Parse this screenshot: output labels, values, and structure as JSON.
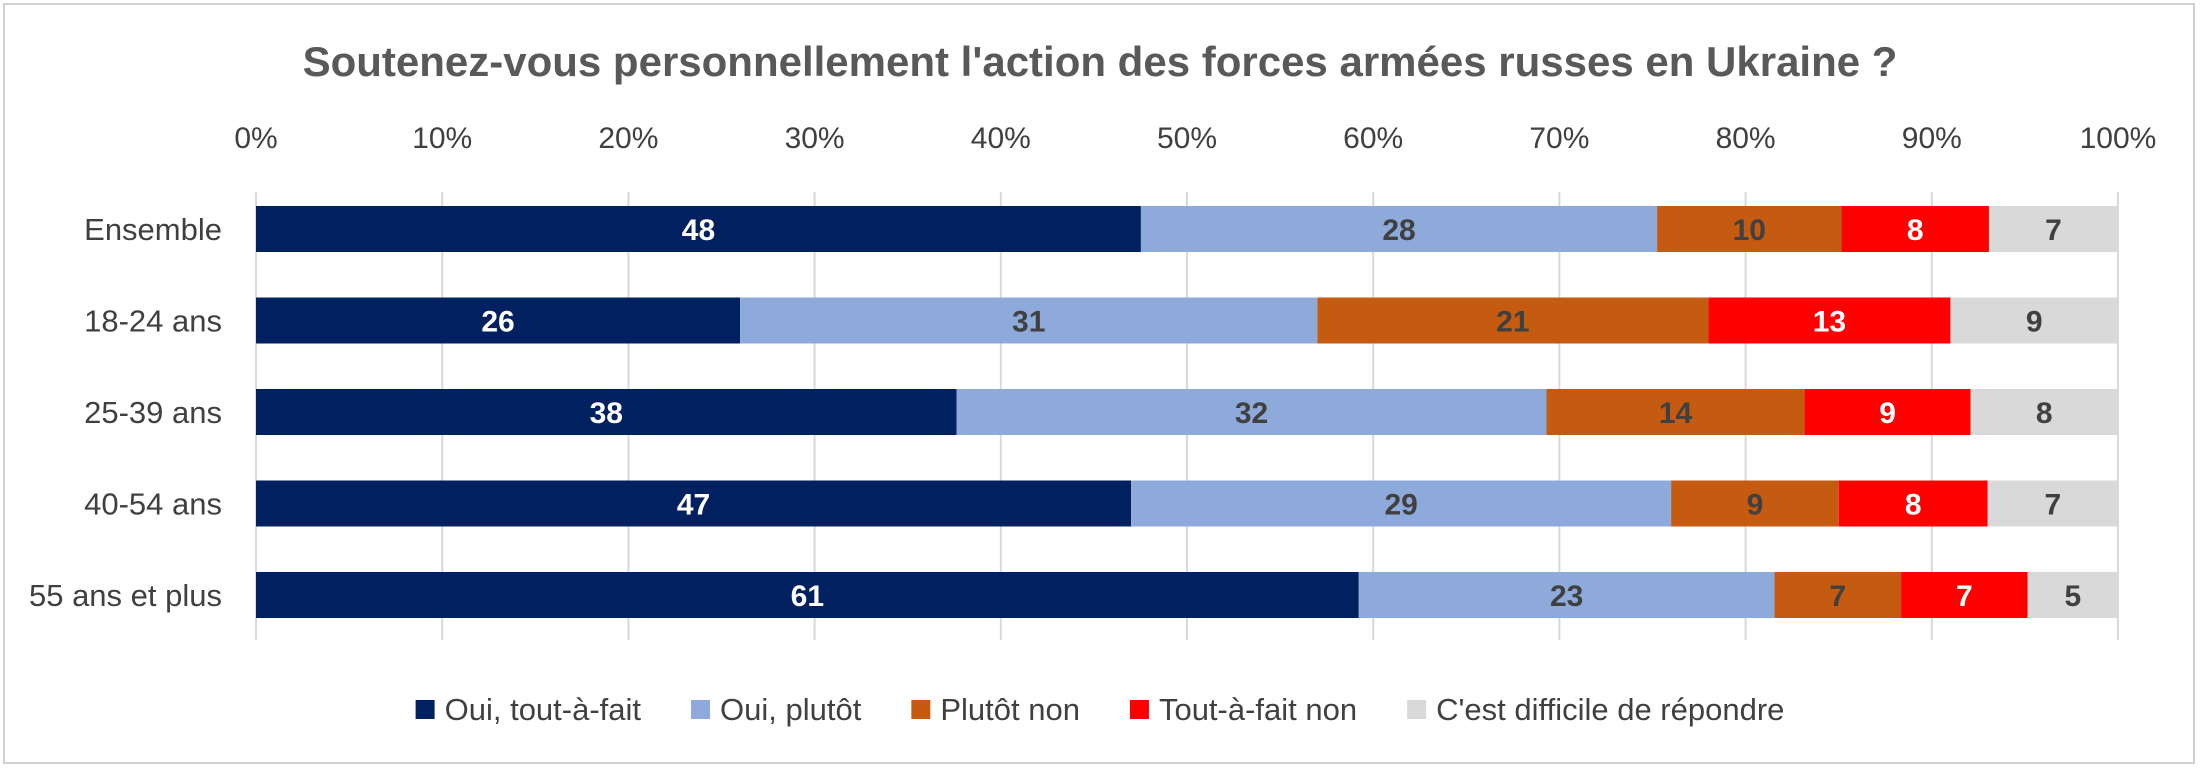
{
  "chart_data": {
    "type": "bar",
    "orientation": "horizontal",
    "stacked": true,
    "title": "Soutenez-vous personnellement l'action des forces armées russes en Ukraine ?",
    "xlim": [
      0,
      100
    ],
    "x_ticks": [
      "0%",
      "10%",
      "20%",
      "30%",
      "40%",
      "50%",
      "60%",
      "70%",
      "80%",
      "90%",
      "100%"
    ],
    "categories": [
      "Ensemble",
      "18-24 ans",
      "25-39 ans",
      "40-54 ans",
      "55 ans et plus"
    ],
    "series": [
      {
        "name": "Oui, tout-à-fait",
        "color": "#002060",
        "label_color": "#ffffff",
        "values": [
          48,
          26,
          38,
          47,
          61
        ]
      },
      {
        "name": "Oui, plutôt",
        "color": "#8eaadb",
        "label_color": "#404040",
        "values": [
          28,
          31,
          32,
          29,
          23
        ]
      },
      {
        "name": "Plutôt non",
        "color": "#c55a11",
        "label_color": "#404040",
        "values": [
          10,
          21,
          14,
          9,
          7
        ]
      },
      {
        "name": "Tout-à-fait non",
        "color": "#ff0000",
        "label_color": "#ffffff",
        "values": [
          8,
          13,
          9,
          8,
          7
        ]
      },
      {
        "name": "C'est difficile de répondre",
        "color": "#d9d9d9",
        "label_color": "#404040",
        "values": [
          7,
          9,
          8,
          7,
          5
        ]
      }
    ],
    "grid": true,
    "legend_position": "bottom"
  }
}
